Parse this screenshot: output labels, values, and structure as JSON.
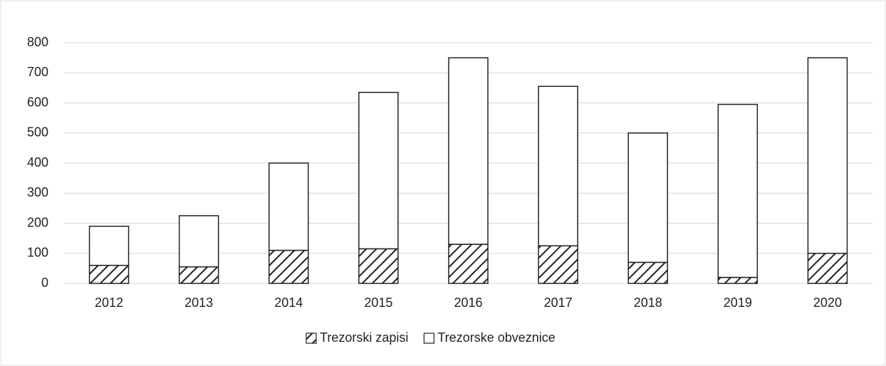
{
  "chart_data": {
    "type": "stacked_bar",
    "categories": [
      "2012",
      "2013",
      "2014",
      "2015",
      "2016",
      "2017",
      "2018",
      "2019",
      "2020"
    ],
    "series": [
      {
        "name": "Trezorski zapisi",
        "color": "#222222",
        "values": [
          60,
          55,
          110,
          115,
          130,
          125,
          70,
          20,
          100
        ]
      },
      {
        "name": "Trezorske obveznice",
        "color": "#ffffff",
        "values": [
          130,
          170,
          290,
          520,
          620,
          530,
          430,
          575,
          650
        ]
      }
    ],
    "ylim": [
      0,
      800
    ],
    "yticks": [
      0,
      100,
      200,
      300,
      400,
      500,
      600,
      700,
      800
    ],
    "grid": true,
    "legend": "bottom"
  }
}
